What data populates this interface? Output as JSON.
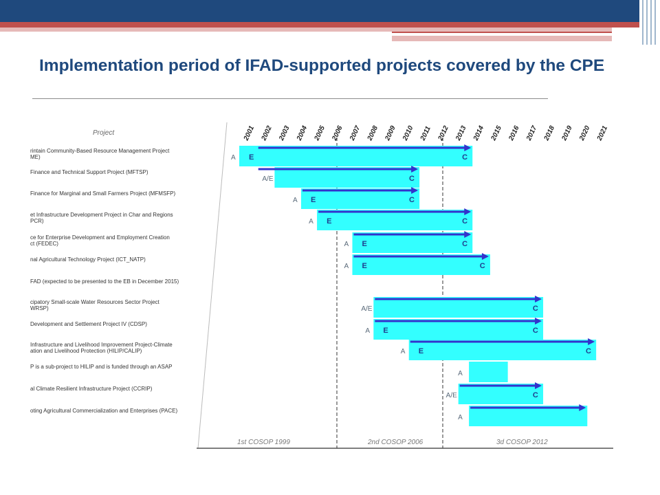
{
  "slide": {
    "title": "Implementation period of IFAD-supported projects covered by the CPE"
  },
  "colors": {
    "bar": "#33ffff",
    "arrow": "#3333cc",
    "header": "#1f497d",
    "accent": "#c0504d"
  },
  "chart_data": {
    "type": "gantt",
    "column_header": "Project",
    "years": [
      "2001",
      "2002",
      "2003",
      "2004",
      "2005",
      "2006",
      "2007",
      "2008",
      "2009",
      "2010",
      "2011",
      "2012",
      "2013",
      "2014",
      "2015",
      "2016",
      "2017",
      "2018",
      "2019",
      "2020",
      "2021"
    ],
    "periods": [
      "1st COSOP 1999",
      "2nd COSOP 2006",
      "3d COSOP 2012"
    ],
    "rows": [
      {
        "label_lines": [
          "rintain Community-Based Resource Management Project",
          "ME)"
        ],
        "marker_a": "A",
        "marker_e": "E",
        "marker_c": "C",
        "bar_start": 2001,
        "bar_end": 2014,
        "arrow_start": 2002,
        "arrow_end": 2014
      },
      {
        "label_lines": [
          "Finance and Technical Support Project (MFTSP)"
        ],
        "marker_a": "A/E",
        "marker_c": "C",
        "bar_start": 2003,
        "bar_end": 2011,
        "arrow_start": 2002,
        "arrow_end": 2011
      },
      {
        "label_lines": [
          "Finance for Marginal and Small Farmers Project (MFMSFP)"
        ],
        "marker_a": "A",
        "marker_e": "E",
        "marker_c": "C",
        "bar_start": 2004.5,
        "bar_end": 2011,
        "arrow_start": 2004.5,
        "arrow_end": 2011
      },
      {
        "label_lines": [
          "et Infrastructure Development Project in Char and Regions",
          "PCR)"
        ],
        "marker_a": "A",
        "marker_e": "E",
        "marker_c": "C",
        "bar_start": 2005.4,
        "bar_end": 2014,
        "arrow_start": 2005.4,
        "arrow_end": 2014
      },
      {
        "label_lines": [
          "ce for Enterprise Development and Employment Creation",
          "ct (FEDEC)"
        ],
        "marker_a": "A",
        "marker_e": "E",
        "marker_c": "C",
        "bar_start": 2007.4,
        "bar_end": 2014,
        "arrow_start": 2007.4,
        "arrow_end": 2014
      },
      {
        "label_lines": [
          "nal Agricultural Technology Project (ICT_NATP)"
        ],
        "marker_a": "A",
        "marker_e": "E",
        "marker_c": "C",
        "bar_start": 2007.4,
        "bar_end": 2015,
        "arrow_start": 2007.4,
        "arrow_end": 2015
      },
      {
        "label_lines": [
          "FAD (expected to be presented to the EB in December 2015)"
        ]
      },
      {
        "label_lines": [
          "cipatory Small-scale Water Resources Sector Project",
          "WRSP)"
        ],
        "marker_a": "A/E",
        "marker_c": "C",
        "bar_start": 2008.6,
        "bar_end": 2018,
        "arrow_start": 2008.6,
        "arrow_end": 2018
      },
      {
        "label_lines": [
          "Development and Settlement Project IV (CDSP)"
        ],
        "marker_a": "A",
        "marker_e": "E",
        "marker_c": "C",
        "bar_start": 2008.6,
        "bar_end": 2018,
        "arrow_start": 2008.6,
        "arrow_end": 2018
      },
      {
        "label_lines": [
          "Infrastructure and Livelihood Improvement Project-Climate",
          "ation and Livelihood Protection (HILIP/CALIP)"
        ],
        "marker_a": "A",
        "marker_e": "E",
        "marker_c": "C",
        "bar_start": 2010.6,
        "bar_end": 2021,
        "arrow_start": 2010.6,
        "arrow_end": 2021
      },
      {
        "label_lines": [
          "P is a sub-project to HILIP and is funded through an ASAP"
        ],
        "marker_a": "A",
        "bar_start": 2014,
        "bar_end": 2016
      },
      {
        "label_lines": [
          "al Climate Resilient Infrastructure Project (CCRIP)"
        ],
        "marker_a": "A/E",
        "marker_c": "C",
        "bar_start": 2013.4,
        "bar_end": 2018,
        "arrow_start": 2013.4,
        "arrow_end": 2018
      },
      {
        "label_lines": [
          "oting Agricultural Commercialization and Enterprises (PACE)"
        ],
        "marker_a": "A",
        "bar_start": 2014,
        "bar_end": 2020.5,
        "arrow_start": 2014,
        "arrow_end": 2020.5
      }
    ]
  }
}
